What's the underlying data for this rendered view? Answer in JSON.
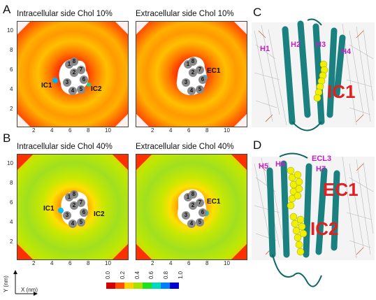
{
  "panels": {
    "A": {
      "letter": "A",
      "left_title": "Intracellular side  Chol 10%",
      "right_title": "Extracellular side  Chol 10%"
    },
    "B": {
      "letter": "B",
      "left_title": "Intracellular side  Chol 40%",
      "right_title": "Extracellular side  Chol 40%"
    },
    "C": {
      "letter": "C"
    },
    "D": {
      "letter": "D"
    }
  },
  "y_ticks": [
    "10",
    "8",
    "6",
    "4",
    "2"
  ],
  "x_ticks": [
    "2",
    "4",
    "6",
    "8",
    "10"
  ],
  "helices": [
    "1",
    "2",
    "3",
    "4",
    "5",
    "6",
    "7",
    "8"
  ],
  "site_labels": {
    "ic1": "IC1",
    "ic2": "IC2",
    "ec1": "EC1"
  },
  "c_labels": {
    "h1": "H1",
    "h2": "H2",
    "h3": "H3",
    "h4": "H4",
    "ic1": "IC1"
  },
  "d_labels": {
    "h5": "H5",
    "h6": "H6",
    "ecl3": "ECL3",
    "h7": "H7",
    "ec1": "EC1",
    "ic2": "IC2"
  },
  "axes_key": {
    "y": "Y (nm)",
    "x": "X (nm)"
  },
  "colorbar": {
    "ticks": [
      "0.0",
      "0.2",
      "0.4",
      "0.6",
      "0.8",
      "1.0"
    ],
    "colors": [
      "#d40000",
      "#ff5000",
      "#ffd000",
      "#a8e000",
      "#20e020",
      "#00d8c0",
      "#0080ff",
      "#0000d0"
    ]
  }
}
